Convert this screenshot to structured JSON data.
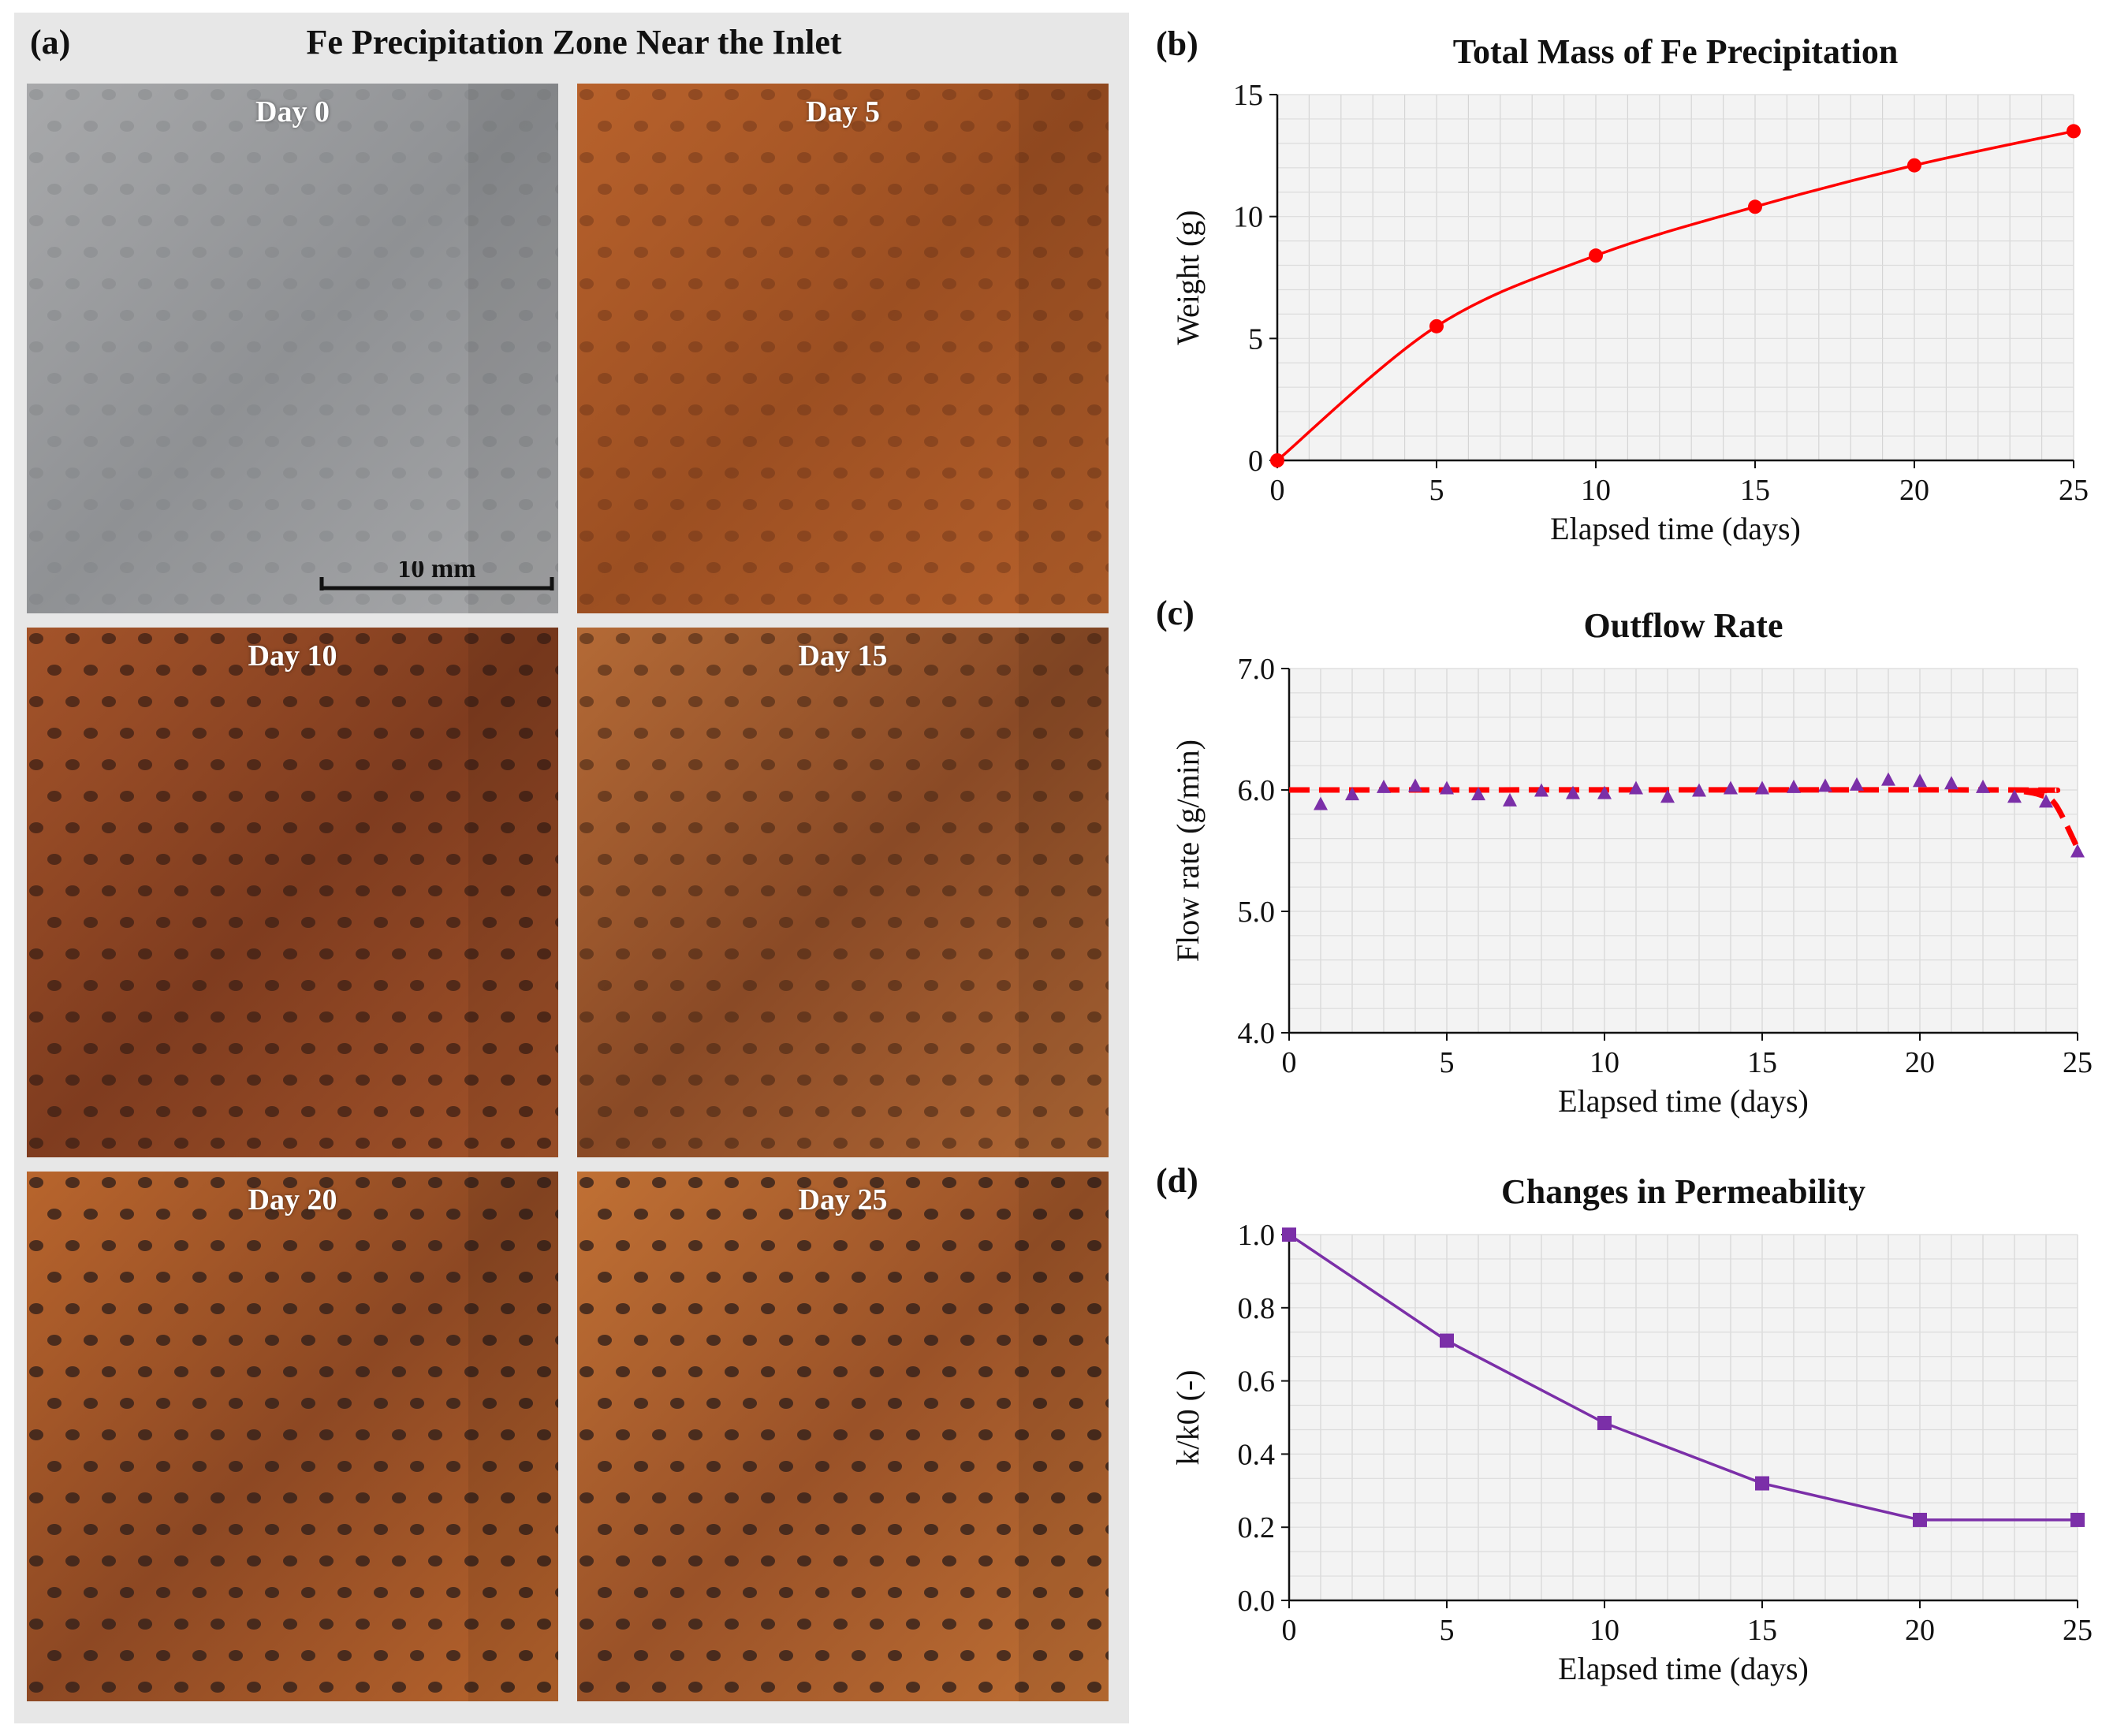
{
  "panel_a": {
    "letter": "(a)",
    "title": "Fe Precipitation Zone Near the Inlet",
    "scale_bar_label": "10 mm",
    "photos": [
      {
        "label": "Day 0",
        "base": "#a8a9ab",
        "tint": "#8f9194",
        "dot": "#7a7d82",
        "dot_alpha": 0.35
      },
      {
        "label": "Day 5",
        "base": "#b8622c",
        "tint": "#9c4f22",
        "dot": "#6a3418",
        "dot_alpha": 0.45
      },
      {
        "label": "Day 10",
        "base": "#a4542a",
        "tint": "#7f3c1f",
        "dot": "#3d2016",
        "dot_alpha": 0.75
      },
      {
        "label": "Day 15",
        "base": "#b46a36",
        "tint": "#8a4a26",
        "dot": "#4a2816",
        "dot_alpha": 0.6
      },
      {
        "label": "Day 20",
        "base": "#b8652d",
        "tint": "#8d4823",
        "dot": "#33211a",
        "dot_alpha": 0.8
      },
      {
        "label": "Day 25",
        "base": "#c07034",
        "tint": "#9a5228",
        "dot": "#33211a",
        "dot_alpha": 0.8
      }
    ]
  },
  "chart_data": [
    {
      "panel": "(b)",
      "type": "line",
      "title": "Total Mass of Fe Precipitation",
      "xlabel": "Elapsed time (days)",
      "ylabel": "Weight (g)",
      "xlim": [
        0,
        25
      ],
      "ylim": [
        0,
        15
      ],
      "xticks": [
        0,
        5,
        10,
        15,
        20,
        25
      ],
      "yticks": [
        0,
        5,
        10,
        15
      ],
      "grid": true,
      "color": "#ff0000",
      "marker": "circle",
      "series": [
        {
          "x": [
            0,
            5,
            10,
            15,
            20,
            25
          ],
          "y": [
            0,
            5.5,
            8.4,
            10.4,
            12.1,
            13.5
          ]
        }
      ]
    },
    {
      "panel": "(c)",
      "type": "scatter",
      "title": "Outflow Rate",
      "xlabel": "Elapsed time (days)",
      "ylabel": "Flow rate (g/min)",
      "xlim": [
        0,
        25
      ],
      "ylim": [
        4.0,
        7.0
      ],
      "xticks": [
        0,
        5,
        10,
        15,
        20,
        25
      ],
      "yticks": [
        "4.0",
        "5.0",
        "6.0",
        "7.0"
      ],
      "grid": true,
      "marker_color": "#7b2fa8",
      "trend_color": "#ff0000",
      "series": [
        {
          "x": [
            1,
            2,
            3,
            4,
            5,
            6,
            7,
            8,
            9,
            10,
            11,
            12,
            13,
            14,
            15,
            16,
            17,
            18,
            19,
            20,
            21,
            22,
            23,
            24,
            25
          ],
          "y": [
            5.88,
            5.96,
            6.02,
            6.03,
            6.01,
            5.96,
            5.91,
            5.99,
            5.97,
            5.97,
            6.01,
            5.94,
            5.99,
            6.01,
            6.01,
            6.02,
            6.03,
            6.04,
            6.08,
            6.07,
            6.05,
            6.02,
            5.94,
            5.9,
            5.49
          ]
        },
        {
          "x": [
            0,
            22.5,
            23.2,
            23.8,
            24.3,
            25
          ],
          "y": [
            6.0,
            6.0,
            5.99,
            5.96,
            5.88,
            5.52
          ]
        }
      ]
    },
    {
      "panel": "(d)",
      "type": "line",
      "title": "Changes in Permeability",
      "xlabel": "Elapsed time (days)",
      "ylabel": "k/k0 (-)",
      "xlim": [
        0,
        25
      ],
      "ylim": [
        0,
        1.0
      ],
      "xticks": [
        0,
        5,
        10,
        15,
        20,
        25
      ],
      "yticks": [
        "0.0",
        "0.2",
        "0.4",
        "0.6",
        "0.8",
        "1.0"
      ],
      "grid": true,
      "color": "#7b2fa8",
      "marker": "square",
      "series": [
        {
          "x": [
            0,
            5,
            10,
            15,
            20,
            25
          ],
          "y": [
            1.0,
            0.71,
            0.485,
            0.32,
            0.22,
            0.22
          ]
        }
      ]
    }
  ]
}
